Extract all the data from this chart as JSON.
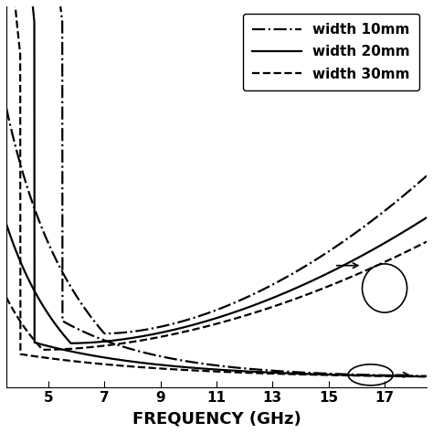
{
  "xlabel": "FREQUENCY (GHz)",
  "xlim": [
    3.5,
    18.5
  ],
  "ylim": [
    -0.05,
    2.3
  ],
  "freq_min": 3.5,
  "freq_max": 18.5,
  "line_color": "#000000",
  "background_color": "#ffffff",
  "tick_fontsize": 11,
  "label_fontsize": 13,
  "legend_fontsize": 11,
  "lw": 1.6,
  "xticks": [
    5,
    7,
    9,
    11,
    13,
    15,
    17
  ]
}
